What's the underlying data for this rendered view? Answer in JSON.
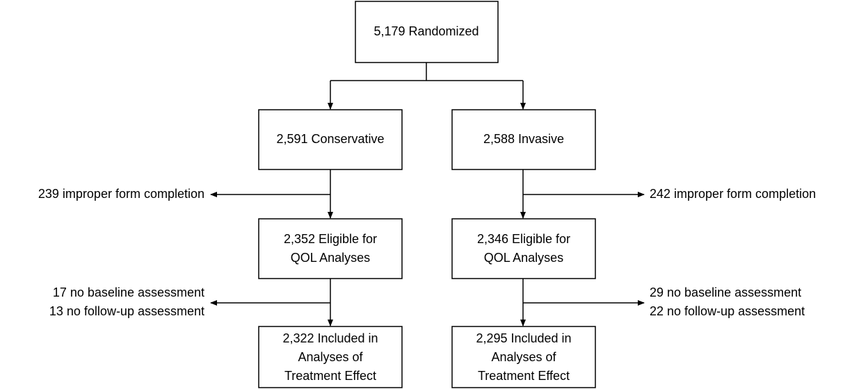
{
  "nodes": [
    {
      "lines": [
        "5,179 Randomized"
      ]
    },
    {
      "lines": [
        "2,591 Conservative"
      ]
    },
    {
      "lines": [
        "2,588 Invasive"
      ]
    },
    {
      "lines": [
        "2,352 Eligible for",
        "QOL Analyses"
      ]
    },
    {
      "lines": [
        "2,346 Eligible for",
        "QOL Analyses"
      ]
    },
    {
      "lines": [
        "2,322 Included in",
        "Analyses of",
        "Treatment Effect"
      ]
    },
    {
      "lines": [
        "2,295 Included in",
        "Analyses of",
        "Treatment Effect"
      ]
    }
  ],
  "exclusions": [
    {
      "lines": [
        "239 improper form completion"
      ]
    },
    {
      "lines": [
        "242 improper form completion"
      ]
    },
    {
      "lines": [
        "17 no baseline assessment",
        "13 no follow-up assessment"
      ]
    },
    {
      "lines": [
        "29 no baseline assessment",
        "22 no follow-up assessment"
      ]
    }
  ]
}
